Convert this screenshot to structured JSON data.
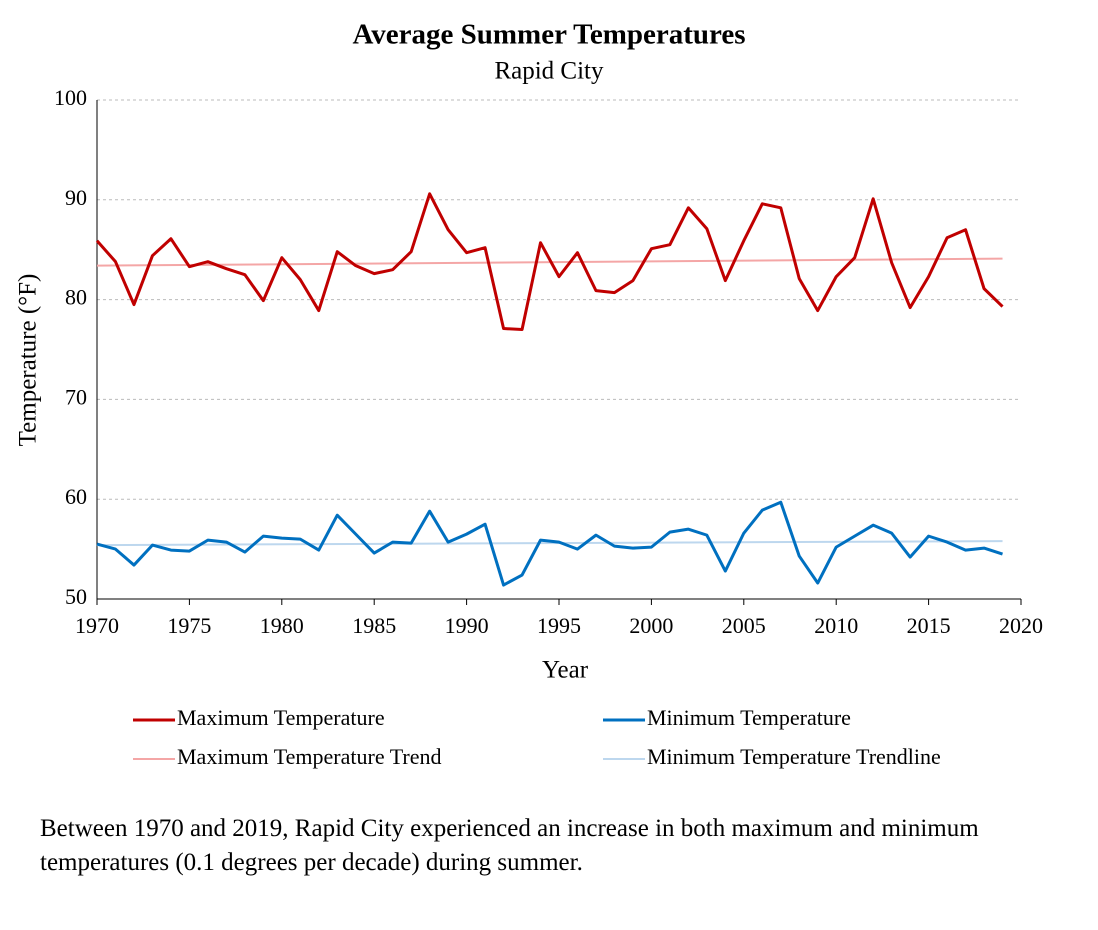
{
  "chart_data": {
    "type": "line",
    "title": "Average Summer Temperatures",
    "subtitle": "Rapid City",
    "x_label": "Year",
    "y_label": "Temperature (°F)",
    "x": [
      1970,
      1971,
      1972,
      1973,
      1974,
      1975,
      1976,
      1977,
      1978,
      1979,
      1980,
      1981,
      1982,
      1983,
      1984,
      1985,
      1986,
      1987,
      1988,
      1989,
      1990,
      1991,
      1992,
      1993,
      1994,
      1995,
      1996,
      1997,
      1998,
      1999,
      2000,
      2001,
      2002,
      2003,
      2004,
      2005,
      2006,
      2007,
      2008,
      2009,
      2010,
      2011,
      2012,
      2013,
      2014,
      2015,
      2016,
      2017,
      2018,
      2019
    ],
    "series": [
      {
        "name": "Maximum Temperature",
        "color": "#c00000",
        "width": 3,
        "values": [
          85.9,
          83.8,
          79.5,
          84.4,
          86.1,
          83.3,
          83.8,
          83.1,
          82.5,
          79.9,
          84.2,
          82.0,
          78.9,
          84.8,
          83.4,
          82.6,
          83.0,
          84.8,
          90.6,
          87.0,
          84.7,
          85.2,
          77.1,
          77.0,
          85.7,
          82.3,
          84.7,
          80.9,
          80.7,
          81.9,
          85.1,
          85.5,
          89.2,
          87.1,
          81.9,
          85.9,
          89.6,
          89.2,
          82.1,
          78.9,
          82.3,
          84.2,
          90.1,
          83.7,
          79.2,
          82.3,
          86.2,
          87.0,
          81.1,
          79.3
        ]
      },
      {
        "name": "Minimum Temperature",
        "color": "#0070c0",
        "width": 3,
        "values": [
          55.5,
          55.0,
          53.4,
          55.4,
          54.9,
          54.8,
          55.9,
          55.7,
          54.7,
          56.3,
          56.1,
          56.0,
          54.9,
          58.4,
          56.5,
          54.6,
          55.7,
          55.6,
          58.8,
          55.7,
          56.5,
          57.5,
          51.4,
          52.4,
          55.9,
          55.7,
          55.0,
          56.4,
          55.3,
          55.1,
          55.2,
          56.7,
          57.0,
          56.4,
          52.8,
          56.6,
          58.9,
          59.7,
          54.3,
          51.6,
          55.2,
          56.3,
          57.4,
          56.6,
          54.2,
          56.3,
          55.7,
          54.9,
          55.1,
          54.5
        ]
      },
      {
        "name": "Maximum Temperature Trend",
        "color": "#f4a6a6",
        "width": 2,
        "x": [
          1970,
          2019
        ],
        "values": [
          83.4,
          84.1
        ]
      },
      {
        "name": "Minimum Temperature Trendline",
        "color": "#bdd7ee",
        "width": 2,
        "x": [
          1970,
          2019
        ],
        "values": [
          55.4,
          55.8
        ]
      }
    ],
    "xlim": [
      1970,
      2020
    ],
    "xticks": [
      1970,
      1975,
      1980,
      1985,
      1990,
      1995,
      2000,
      2005,
      2010,
      2015,
      2020
    ],
    "ylim": [
      50,
      100
    ],
    "yticks": [
      50,
      60,
      70,
      80,
      90,
      100
    ],
    "grid": true,
    "legend": "bottom"
  },
  "caption": "Between 1970 and 2019, Rapid City experienced an increase in both maximum and minimum temperatures (0.1 degrees per decade) during summer."
}
